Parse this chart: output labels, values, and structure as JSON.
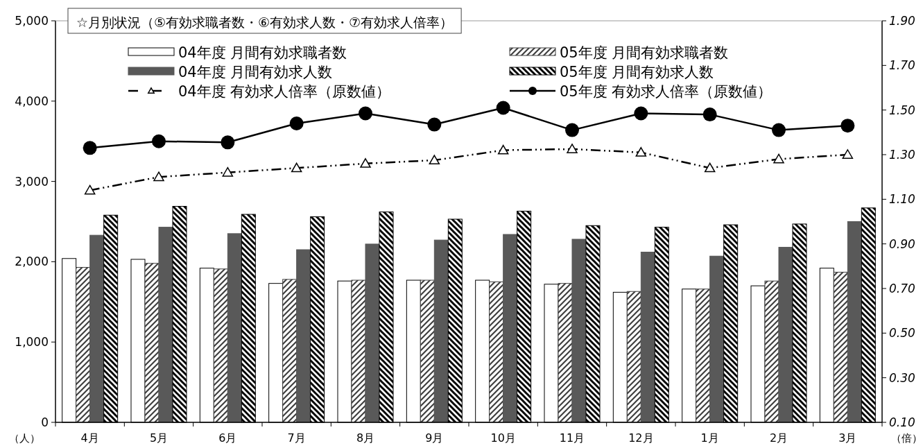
{
  "chart_data": {
    "type": "bar",
    "title": "☆月別状況（⑤有効求職者数・⑥有効求人数・⑦有効求人倍率）",
    "ylabel": "（人）",
    "y2label": "（倍）",
    "categories": [
      "4月",
      "5月",
      "6月",
      "7月",
      "8月",
      "9月",
      "10月",
      "11月",
      "12月",
      "1月",
      "2月",
      "3月"
    ],
    "series": [
      {
        "name": "04年度 月間有効求職者数",
        "color": "#ffffff",
        "values": [
          2040,
          2030,
          1920,
          1730,
          1760,
          1770,
          1770,
          1720,
          1620,
          1660,
          1700,
          1920
        ]
      },
      {
        "name": "05年度 月間有効求職者数",
        "color": "#404040",
        "values": [
          1930,
          1980,
          1910,
          1780,
          1770,
          1770,
          1750,
          1730,
          1630,
          1660,
          1760,
          1870
        ]
      },
      {
        "name": "04年度 月間有効求人数",
        "color": "#595959",
        "values": [
          2330,
          2430,
          2350,
          2150,
          2220,
          2270,
          2340,
          2280,
          2120,
          2070,
          2180,
          2500
        ]
      },
      {
        "name": "05年度 月間有効求人数",
        "color": "#000000",
        "values": [
          2580,
          2690,
          2590,
          2560,
          2620,
          2530,
          2630,
          2450,
          2430,
          2460,
          2470,
          2670
        ]
      },
      {
        "name": "04年度 有効求人倍率（原数値）",
        "type": "line",
        "axis": "y2",
        "color": "#000000",
        "marker": "triangle",
        "line_style": "dashed",
        "values": [
          1.14,
          1.2,
          1.22,
          1.24,
          1.26,
          1.275,
          1.32,
          1.325,
          1.31,
          1.24,
          1.28,
          1.3
        ]
      },
      {
        "name": "05年度 有効求人倍率（原数値）",
        "type": "line",
        "axis": "y2",
        "color": "#000000",
        "marker": "circle",
        "line_style": "solid",
        "values": [
          1.33,
          1.36,
          1.355,
          1.44,
          1.485,
          1.435,
          1.51,
          1.41,
          1.485,
          1.48,
          1.41,
          1.43
        ]
      }
    ],
    "ylim": [
      0,
      5000
    ],
    "yticks": [
      {
        "value": 0,
        "label": "0"
      },
      {
        "value": 1000,
        "label": "1,000"
      },
      {
        "value": 2000,
        "label": "2,000"
      },
      {
        "value": 3000,
        "label": "3,000"
      },
      {
        "value": 4000,
        "label": "4,000"
      },
      {
        "value": 5000,
        "label": "5,000"
      }
    ],
    "y2lim": [
      0.1,
      1.9
    ],
    "y2ticks": [
      {
        "value": 0.1,
        "label": "0.10"
      },
      {
        "value": 0.3,
        "label": "0.30"
      },
      {
        "value": 0.5,
        "label": "0.50"
      },
      {
        "value": 0.7,
        "label": "0.70"
      },
      {
        "value": 0.9,
        "label": "0.90"
      },
      {
        "value": 1.1,
        "label": "1.10"
      },
      {
        "value": 1.3,
        "label": "1.30"
      },
      {
        "value": 1.5,
        "label": "1.50"
      },
      {
        "value": 1.7,
        "label": "1.70"
      },
      {
        "value": 1.9,
        "label": "1.90"
      }
    ],
    "grid": false,
    "legend": "top"
  }
}
